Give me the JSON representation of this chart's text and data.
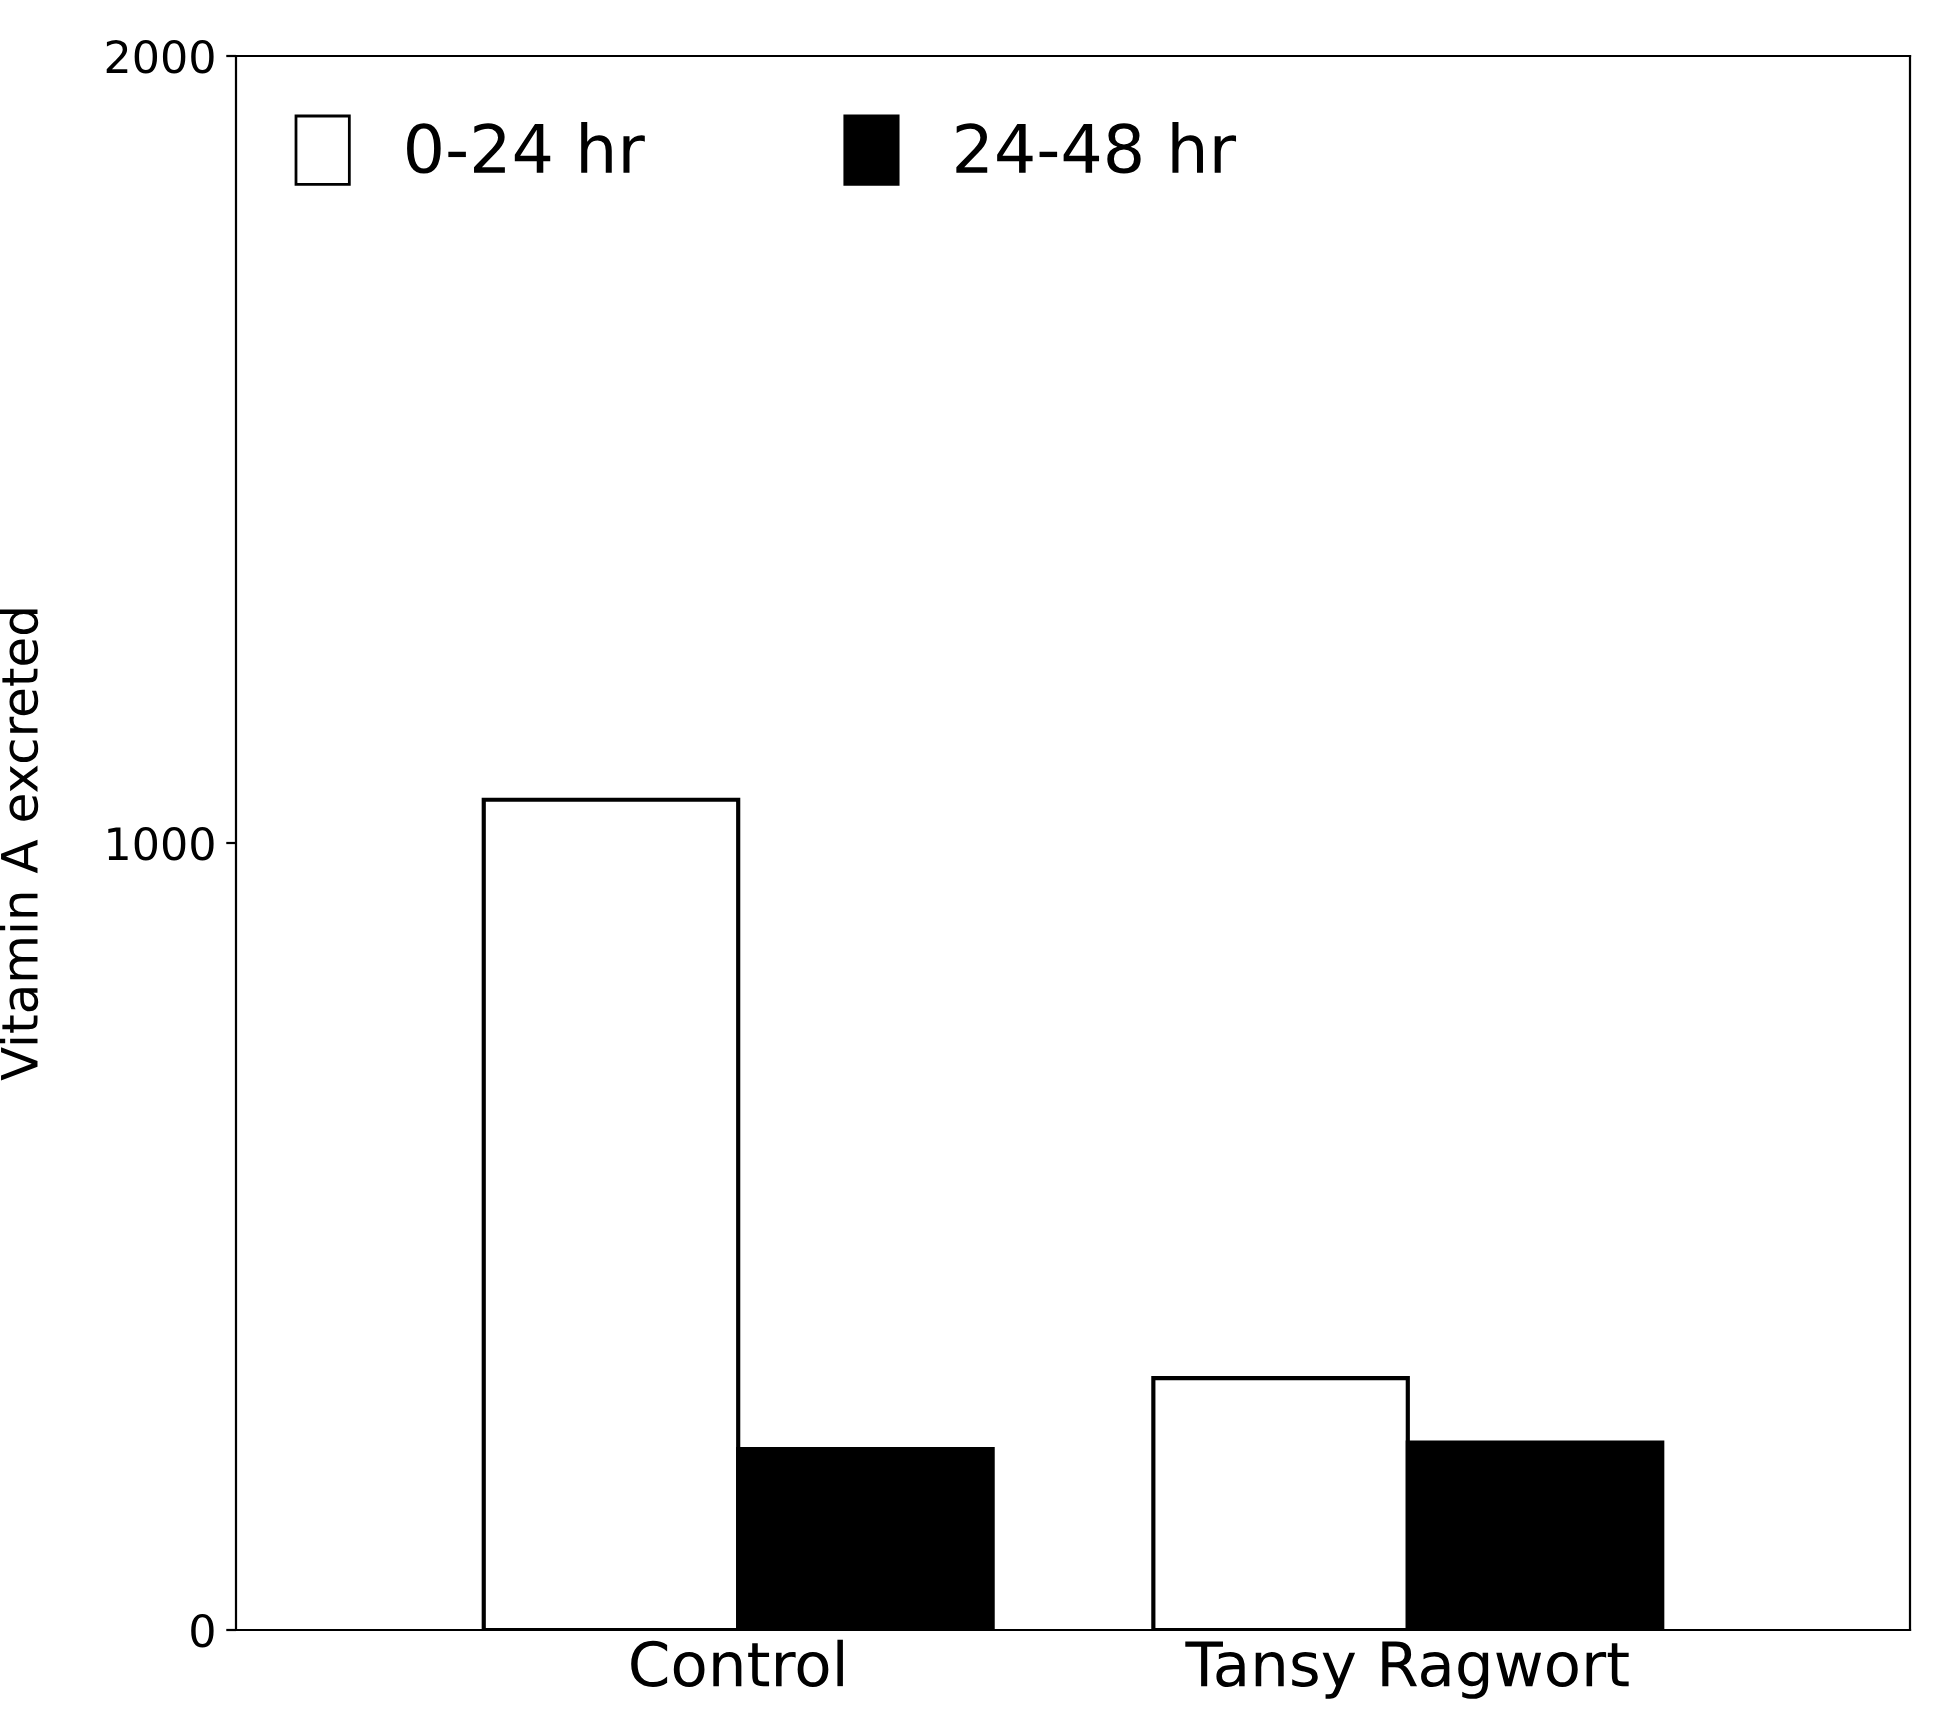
{
  "chart_data": {
    "type": "bar",
    "ylabel": "Vitamin A excreted",
    "categories": [
      "Control",
      "Tansy Ragwort"
    ],
    "series": [
      {
        "name": "0-24 hr",
        "color": "#ffffff",
        "values": [
          1055,
          320
        ]
      },
      {
        "name": "24-48 hr",
        "color": "#000000",
        "values": [
          230,
          238
        ]
      }
    ],
    "ylim": [
      0,
      2000
    ],
    "yticks": [
      0,
      1000,
      2000
    ],
    "grid": false,
    "legend": "top left"
  }
}
